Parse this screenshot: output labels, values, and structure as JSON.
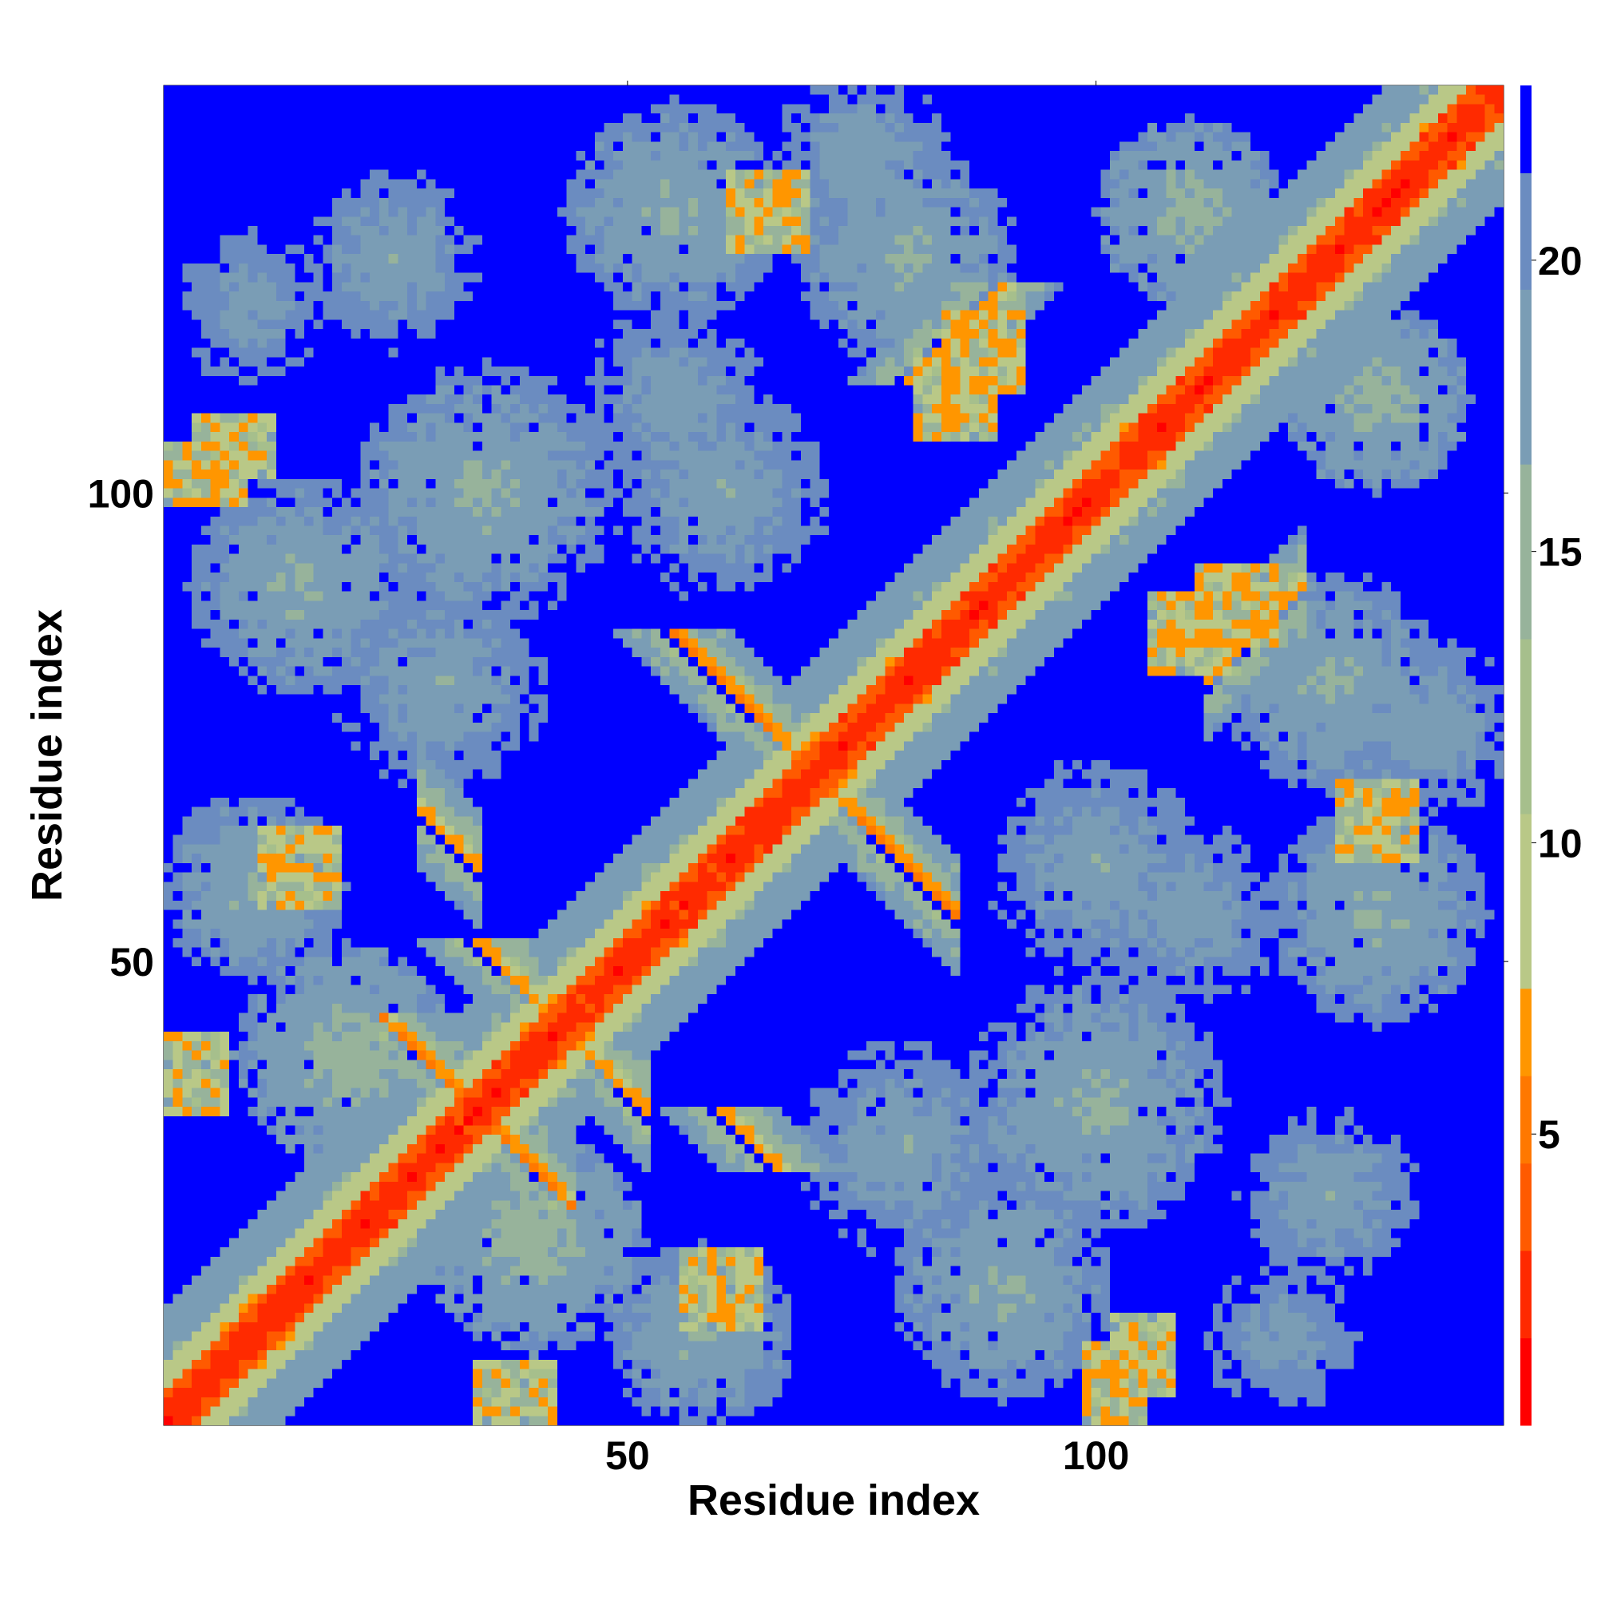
{
  "chart_data": {
    "type": "heatmap",
    "description_of_values": "",
    "xlabel": "Residue index",
    "ylabel": "Residue index",
    "n_residues": 143,
    "xlim": [
      1,
      143
    ],
    "ylim": [
      1,
      143
    ],
    "x_ticks": [
      50,
      100
    ],
    "y_ticks": [
      50,
      100
    ],
    "x_tick_labels": [
      "50",
      "100"
    ],
    "y_tick_labels": [
      "50",
      "100"
    ],
    "colorbar": {
      "ticks": [
        5,
        10,
        15,
        20
      ],
      "tick_labels": [
        "5",
        "10",
        "15",
        "20"
      ],
      "range": [
        0,
        23
      ],
      "levels": [
        {
          "from": 0,
          "to": 1.5,
          "color": "#ff0000"
        },
        {
          "from": 1.5,
          "to": 3.0,
          "color": "#ff2a00"
        },
        {
          "from": 3.0,
          "to": 4.5,
          "color": "#ff5a00"
        },
        {
          "from": 4.5,
          "to": 6.0,
          "color": "#ff7800"
        },
        {
          "from": 6.0,
          "to": 7.5,
          "color": "#ff9600"
        },
        {
          "from": 7.5,
          "to": 10.5,
          "color": "#b9c887"
        },
        {
          "from": 10.5,
          "to": 13.5,
          "color": "#a6bf8c"
        },
        {
          "from": 13.5,
          "to": 16.5,
          "color": "#97b39b"
        },
        {
          "from": 16.5,
          "to": 19.5,
          "color": "#7a9db5"
        },
        {
          "from": 19.5,
          "to": 21.5,
          "color": "#6b8cc0"
        },
        {
          "from": 21.5,
          "to": 23.0,
          "color": "#0000ff"
        }
      ]
    },
    "background_color": "#0000ff",
    "diagonal_color": "#ff0000",
    "grid": false,
    "contact_features": [
      {
        "type": "band",
        "i": 1,
        "j": 143,
        "width": 3,
        "value": 1
      },
      {
        "type": "band",
        "i": 1,
        "j": 143,
        "width": 6,
        "value": 5
      },
      {
        "type": "band",
        "i": 1,
        "j": 143,
        "width": 12,
        "value": 14
      },
      {
        "type": "antiparallel",
        "i_start": 55,
        "i_end": 70,
        "j_start": 85,
        "j_end": 70,
        "value": 5
      },
      {
        "type": "antiparallel",
        "i_start": 24,
        "i_end": 34,
        "j_start": 44,
        "j_end": 34,
        "value": 5
      },
      {
        "type": "antiparallel",
        "i_start": 34,
        "i_end": 42,
        "j_start": 52,
        "j_end": 42,
        "value": 6
      },
      {
        "type": "antiparallel",
        "i_start": 60,
        "i_end": 66,
        "j_start": 34,
        "j_end": 28,
        "value": 6
      },
      {
        "type": "parallel",
        "i_start": 80,
        "i_end": 90,
        "j_start": 112,
        "j_end": 122,
        "value": 6
      },
      {
        "type": "patch",
        "i": 3,
        "j": 38,
        "ri": 4,
        "rj": 4,
        "value": 6
      },
      {
        "type": "patch",
        "i": 60,
        "j": 15,
        "ri": 4,
        "rj": 4,
        "value": 6
      },
      {
        "type": "patch",
        "i": 105,
        "j": 8,
        "ri": 3,
        "rj": 4,
        "value": 6
      },
      {
        "type": "patch",
        "i": 110,
        "j": 85,
        "ri": 4,
        "rj": 4,
        "value": 6
      },
      {
        "type": "patch",
        "i": 88,
        "j": 115,
        "ri": 4,
        "rj": 4,
        "value": 6
      },
      {
        "type": "patch",
        "i": 65,
        "j": 130,
        "ri": 4,
        "rj": 4,
        "value": 6
      },
      {
        "type": "patch",
        "i": 5,
        "j": 102,
        "ri": 4,
        "rj": 3,
        "value": 6
      },
      {
        "type": "blob",
        "ci": 20,
        "cj": 40,
        "r": 12,
        "value": 14
      },
      {
        "type": "blob",
        "ci": 40,
        "cj": 20,
        "r": 12,
        "value": 14
      },
      {
        "type": "blob",
        "ci": 15,
        "cj": 90,
        "r": 12,
        "value": 15
      },
      {
        "type": "blob",
        "ci": 90,
        "cj": 15,
        "r": 12,
        "value": 15
      },
      {
        "type": "blob",
        "ci": 35,
        "cj": 100,
        "r": 14,
        "value": 15
      },
      {
        "type": "blob",
        "ci": 100,
        "cj": 35,
        "r": 14,
        "value": 15
      },
      {
        "type": "blob",
        "ci": 10,
        "cj": 58,
        "r": 10,
        "value": 15
      },
      {
        "type": "blob",
        "ci": 58,
        "cj": 10,
        "r": 10,
        "value": 15
      },
      {
        "type": "blob",
        "ci": 55,
        "cj": 130,
        "r": 12,
        "value": 15
      },
      {
        "type": "blob",
        "ci": 130,
        "cj": 55,
        "r": 12,
        "value": 15
      },
      {
        "type": "blob",
        "ci": 80,
        "cj": 125,
        "r": 12,
        "value": 15
      },
      {
        "type": "blob",
        "ci": 125,
        "cj": 80,
        "r": 12,
        "value": 15
      },
      {
        "type": "blob",
        "ci": 110,
        "cj": 130,
        "r": 10,
        "value": 14
      },
      {
        "type": "blob",
        "ci": 130,
        "cj": 110,
        "r": 10,
        "value": 14
      },
      {
        "type": "blob",
        "ci": 30,
        "cj": 80,
        "r": 12,
        "value": 16
      },
      {
        "type": "blob",
        "ci": 80,
        "cj": 30,
        "r": 12,
        "value": 16
      },
      {
        "type": "blob",
        "ci": 60,
        "cj": 100,
        "r": 12,
        "value": 16
      },
      {
        "type": "blob",
        "ci": 100,
        "cj": 60,
        "r": 12,
        "value": 16
      },
      {
        "type": "blob",
        "ci": 110,
        "cj": 55,
        "r": 10,
        "value": 16
      },
      {
        "type": "blob",
        "ci": 55,
        "cj": 110,
        "r": 10,
        "value": 16
      },
      {
        "type": "blob",
        "ci": 75,
        "cj": 135,
        "r": 10,
        "value": 16
      },
      {
        "type": "blob",
        "ci": 135,
        "cj": 75,
        "r": 10,
        "value": 16
      },
      {
        "type": "blob",
        "ci": 10,
        "cj": 120,
        "r": 10,
        "value": 17
      },
      {
        "type": "blob",
        "ci": 120,
        "cj": 10,
        "r": 10,
        "value": 17
      },
      {
        "type": "blob",
        "ci": 125,
        "cj": 25,
        "r": 10,
        "value": 16
      },
      {
        "type": "blob",
        "ci": 25,
        "cj": 125,
        "r": 10,
        "value": 16
      }
    ]
  }
}
